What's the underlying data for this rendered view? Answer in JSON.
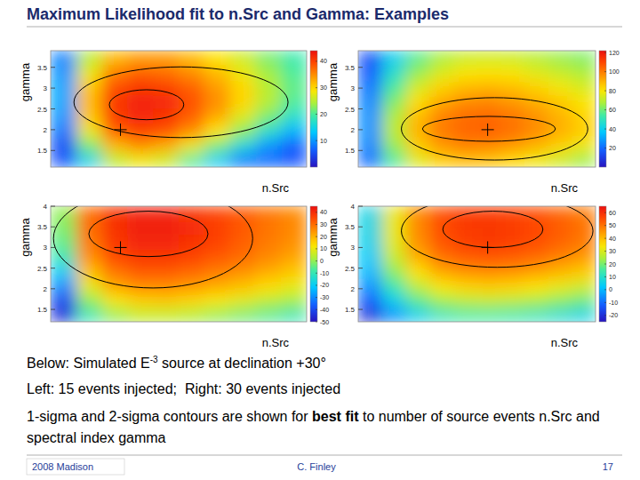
{
  "header": {
    "title": "Maximum Likelihood fit to n.Src and Gamma: Examples"
  },
  "chart_data": [
    {
      "type": "heatmap",
      "x_label": "n.Src",
      "y_label": "gamma",
      "xlim": [
        0,
        55
      ],
      "ylim": [
        1.1,
        3.9
      ],
      "yticks": [
        1.5,
        2,
        2.5,
        3,
        3.5
      ],
      "tick_labels": "y",
      "x_edges": [
        0,
        5.5,
        11,
        16.5,
        22,
        27.5,
        33,
        38.5,
        44,
        49.5,
        55
      ],
      "y_edges": [
        1.1,
        1.45,
        1.8,
        2.15,
        2.5,
        2.85,
        3.2,
        3.55,
        3.9
      ],
      "cells": [
        [
          6,
          15,
          25,
          28,
          26,
          20,
          14,
          8,
          7,
          6
        ],
        [
          5,
          22,
          32,
          35,
          33,
          28,
          22,
          16,
          10,
          6
        ],
        [
          8,
          28,
          38,
          40,
          39,
          35,
          29,
          23,
          17,
          12
        ],
        [
          10,
          31,
          40,
          42,
          41,
          38,
          33,
          27,
          22,
          17
        ],
        [
          11,
          32,
          41,
          42.5,
          42,
          39,
          35,
          30,
          25,
          20
        ],
        [
          11,
          31,
          39,
          41,
          40,
          38,
          34,
          30,
          25,
          21
        ],
        [
          10,
          28,
          36,
          38,
          37,
          35,
          32,
          28,
          24,
          20
        ],
        [
          9,
          25,
          32,
          34,
          34,
          32,
          29,
          26,
          22,
          19
        ]
      ],
      "color_range": [
        0,
        44
      ],
      "color_ticks": [
        10,
        20,
        30,
        40
      ],
      "marker": "cross",
      "injected": {
        "x": 15,
        "y": 2
      },
      "contours": [
        {
          "sigma": 1,
          "x": 20.6,
          "y": 2.6,
          "half_x": 8,
          "half_y": 0.36
        },
        {
          "sigma": 2,
          "x": 28,
          "y": 2.66,
          "half_x": 23,
          "half_y": 0.85
        }
      ]
    },
    {
      "type": "heatmap",
      "x_label": "n.Src",
      "y_label": "gamma",
      "xlim": [
        0,
        55
      ],
      "ylim": [
        1.1,
        3.9
      ],
      "yticks": [
        1.5,
        2,
        2.5,
        3,
        3.5
      ],
      "tick_labels": "y",
      "x_edges": [
        0,
        5.5,
        11,
        16.5,
        22,
        27.5,
        33,
        38.5,
        44,
        49.5,
        55
      ],
      "y_edges": [
        1.1,
        1.45,
        1.8,
        2.15,
        2.5,
        2.85,
        3.2,
        3.55,
        3.9
      ],
      "cells": [
        [
          20,
          55,
          75,
          85,
          88,
          87,
          83,
          78,
          72,
          65
        ],
        [
          25,
          65,
          85,
          95,
          99,
          98,
          95,
          90,
          84,
          78
        ],
        [
          27,
          70,
          90,
          100,
          104,
          105,
          102,
          97,
          91,
          85
        ],
        [
          27,
          68,
          88,
          99,
          103,
          104,
          101,
          96,
          90,
          84
        ],
        [
          25,
          62,
          82,
          92,
          97,
          98,
          95,
          91,
          86,
          80
        ],
        [
          22,
          55,
          74,
          84,
          89,
          90,
          88,
          84,
          79,
          74
        ],
        [
          18,
          47,
          65,
          75,
          80,
          81,
          80,
          76,
          72,
          68
        ],
        [
          15,
          40,
          57,
          67,
          72,
          73,
          72,
          69,
          65,
          62
        ]
      ],
      "color_range": [
        0,
        122
      ],
      "color_ticks": [
        20,
        40,
        60,
        80,
        100,
        120
      ],
      "marker": "cross",
      "injected": {
        "x": 30,
        "y": 2
      },
      "contours": [
        {
          "sigma": 1,
          "x": 30.3,
          "y": 2.02,
          "half_x": 15.4,
          "half_y": 0.3
        },
        {
          "sigma": 2,
          "x": 31.6,
          "y": 2.02,
          "half_x": 21.6,
          "half_y": 0.75
        }
      ]
    },
    {
      "type": "heatmap",
      "x_label": "n.Src",
      "y_label": "gamma",
      "xlim": [
        0,
        55
      ],
      "ylim": [
        1.2,
        4.0
      ],
      "yticks": [
        1.5,
        2,
        2.5,
        3,
        3.5,
        4
      ],
      "tick_labels": "y",
      "x_edges": [
        0,
        5.5,
        11,
        16.5,
        22,
        27.5,
        33,
        38.5,
        44,
        49.5,
        55
      ],
      "y_edges": [
        1.2,
        1.55,
        1.9,
        2.25,
        2.6,
        2.95,
        3.3,
        3.65,
        4.0
      ],
      "cells": [
        [
          -45,
          -10,
          0,
          5,
          5,
          3,
          0,
          -3,
          -6,
          -10
        ],
        [
          -40,
          0,
          12,
          16,
          17,
          15,
          12,
          9,
          5,
          2
        ],
        [
          -30,
          10,
          22,
          26,
          26,
          24,
          21,
          18,
          14,
          10
        ],
        [
          -20,
          18,
          29,
          33,
          33,
          31,
          28,
          25,
          21,
          17
        ],
        [
          -10,
          25,
          35,
          38,
          38,
          36,
          33,
          30,
          26,
          22
        ],
        [
          -5,
          28,
          38,
          41,
          41,
          39,
          36,
          32,
          28,
          25
        ],
        [
          -2,
          30,
          39,
          42,
          42,
          40,
          37,
          33,
          29,
          26
        ],
        [
          0,
          30,
          39,
          41,
          41,
          39,
          36,
          33,
          29,
          26
        ]
      ],
      "color_range": [
        -50,
        45
      ],
      "color_ticks": [
        -50,
        -40,
        -30,
        -20,
        -10,
        0,
        10,
        20,
        30,
        40
      ],
      "marker": "cross",
      "injected": {
        "x": 15,
        "y": 3
      },
      "contours": [
        {
          "sigma": 1,
          "x": 21,
          "y": 3.33,
          "half_x": 12.8,
          "half_y": 0.55
        },
        {
          "sigma": 2,
          "x": 22,
          "y": 3.22,
          "half_x": 21.4,
          "half_y": 1.2
        }
      ]
    },
    {
      "type": "heatmap",
      "x_label": "n.Src",
      "y_label": "gamma",
      "xlim": [
        0,
        55
      ],
      "ylim": [
        1.2,
        4.0
      ],
      "yticks": [
        1.5,
        2,
        2.5,
        3,
        3.5,
        4
      ],
      "tick_labels": "y",
      "x_edges": [
        0,
        5.5,
        11,
        16.5,
        22,
        27.5,
        33,
        38.5,
        44,
        49.5,
        55
      ],
      "y_edges": [
        1.2,
        1.55,
        1.9,
        2.25,
        2.6,
        2.95,
        3.3,
        3.65,
        4.0
      ],
      "cells": [
        [
          -20,
          -5,
          5,
          12,
          15,
          15,
          14,
          12,
          9,
          6
        ],
        [
          -12,
          5,
          17,
          24,
          27,
          28,
          27,
          25,
          22,
          19
        ],
        [
          -5,
          14,
          27,
          34,
          37,
          38,
          37,
          35,
          32,
          29
        ],
        [
          0,
          22,
          35,
          43,
          46,
          47,
          46,
          44,
          41,
          38
        ],
        [
          3,
          28,
          42,
          50,
          53,
          54,
          53,
          51,
          48,
          45
        ],
        [
          5,
          31,
          46,
          54,
          57,
          58,
          57,
          55,
          52,
          49
        ],
        [
          6,
          32,
          47,
          55,
          58,
          59,
          58,
          56,
          53,
          50
        ],
        [
          6,
          32,
          47,
          55,
          58,
          58,
          57,
          55,
          52,
          49
        ]
      ],
      "color_range": [
        -25,
        65
      ],
      "color_ticks": [
        -20,
        -10,
        0,
        10,
        20,
        30,
        40,
        50,
        60
      ],
      "marker": "cross",
      "injected": {
        "x": 30,
        "y": 3
      },
      "contours": [
        {
          "sigma": 1,
          "x": 31.2,
          "y": 3.44,
          "half_x": 11.6,
          "half_y": 0.44
        },
        {
          "sigma": 2,
          "x": 32.2,
          "y": 3.4,
          "half_x": 22.2,
          "half_y": 0.88
        }
      ]
    }
  ],
  "text": {
    "caption": [
      {
        "text": "Below: Simulated E"
      },
      {
        "text": "-3",
        "sup": true
      },
      {
        "text": " source at declination +30°"
      }
    ],
    "injection": "Left: 15 events injected;  Right: 30 events injected",
    "description": [
      {
        "text": "1-sigma and 2-sigma contours are shown for "
      },
      {
        "text": "best fit",
        "bold": true
      },
      {
        "text": " to number of source events n.Src and spectral index gamma"
      }
    ]
  },
  "footer": {
    "left": "2008 Madison",
    "center": "C. Finley",
    "right": "17"
  }
}
